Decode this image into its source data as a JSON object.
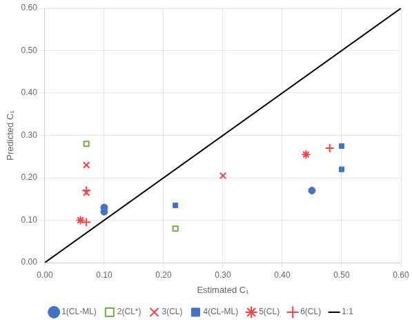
{
  "chart_data": {
    "type": "scatter",
    "xlabel": "Estimated C₁",
    "ylabel": "Predicted C₁",
    "xlim": [
      0.0,
      0.6
    ],
    "ylim": [
      0.0,
      0.6
    ],
    "xticks": [
      {
        "value": 0.0,
        "label": "0.00"
      },
      {
        "value": 0.1,
        "label": "0.10"
      },
      {
        "value": 0.2,
        "label": "0.20"
      },
      {
        "value": 0.3,
        "label": "0.30"
      },
      {
        "value": 0.4,
        "label": "0.40"
      },
      {
        "value": 0.5,
        "label": "0.50"
      },
      {
        "value": 0.6,
        "label": "0.60"
      }
    ],
    "yticks": [
      {
        "value": 0.0,
        "label": "0.00"
      },
      {
        "value": 0.1,
        "label": "0.10"
      },
      {
        "value": 0.2,
        "label": "0.20"
      },
      {
        "value": 0.3,
        "label": "0.30"
      },
      {
        "value": 0.4,
        "label": "0.40"
      },
      {
        "value": 0.5,
        "label": "0.50"
      },
      {
        "value": 0.6,
        "label": "0.60"
      }
    ],
    "grid": true,
    "legend": "bottom",
    "series": [
      {
        "name": "1(CL-ML)",
        "color": "#4472C4",
        "marker": "circle",
        "values": [
          [
            0.1,
            0.13
          ],
          [
            0.1,
            0.12
          ],
          [
            0.45,
            0.17
          ]
        ]
      },
      {
        "name": "2(CL*)",
        "color": "#70AD47",
        "marker": "open_square",
        "values": [
          [
            0.07,
            0.28
          ],
          [
            0.22,
            0.08
          ]
        ]
      },
      {
        "name": "3(CL)",
        "color": "#FF4040",
        "marker": "x",
        "values": [
          [
            0.07,
            0.23
          ],
          [
            0.07,
            0.165
          ],
          [
            0.3,
            0.205
          ]
        ]
      },
      {
        "name": "4(CL-ML)",
        "color": "#4472C4",
        "marker": "square",
        "values": [
          [
            0.22,
            0.135
          ],
          [
            0.5,
            0.275
          ],
          [
            0.5,
            0.22
          ]
        ]
      },
      {
        "name": "5(CL)",
        "color": "#FF4040",
        "marker": "star",
        "values": [
          [
            0.06,
            0.1
          ],
          [
            0.44,
            0.255
          ]
        ]
      },
      {
        "name": "6(CL)",
        "color": "#FF4040",
        "marker": "plus",
        "values": [
          [
            0.07,
            0.17
          ],
          [
            0.07,
            0.095
          ],
          [
            0.48,
            0.27
          ]
        ]
      },
      {
        "name": "1:1",
        "type": "line",
        "color": "black",
        "line_style": "solid",
        "values": [
          [
            0.0,
            0.0
          ],
          [
            0.6,
            0.6
          ]
        ]
      }
    ]
  }
}
